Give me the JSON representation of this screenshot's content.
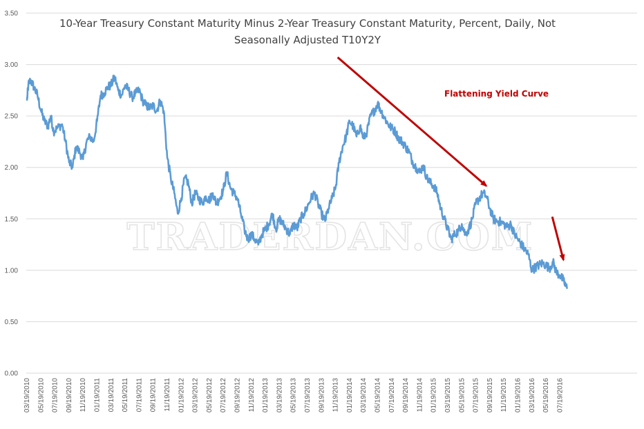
{
  "chart_data": {
    "type": "line",
    "title": "10-Year Treasury Constant Maturity Minus 2-Year Treasury Constant Maturity, Percent, Daily, Not",
    "subtitle": "Seasonally Adjusted T10Y2Y",
    "watermark": "TRADERDAN.COM",
    "xlabel": "",
    "ylabel": "",
    "ylim": [
      0,
      3.5
    ],
    "yticks": [
      "0.00",
      "0.50",
      "1.00",
      "1.50",
      "2.00",
      "2.50",
      "3.00",
      "3.50"
    ],
    "grid": true,
    "x_tick_labels": [
      "03/19/2010",
      "05/19/2010",
      "07/19/2010",
      "09/19/2010",
      "11/19/2010",
      "01/19/2011",
      "03/19/2011",
      "05/19/2011",
      "07/19/2011",
      "09/19/2011",
      "11/19/2011",
      "01/19/2012",
      "03/19/2012",
      "05/19/2012",
      "07/19/2012",
      "09/19/2012",
      "11/19/2012",
      "01/19/2013",
      "03/19/2013",
      "05/19/2013",
      "07/19/2013",
      "09/19/2013",
      "11/19/2013",
      "01/19/2014",
      "03/19/2014",
      "05/19/2014",
      "07/19/2014",
      "09/19/2014",
      "11/19/2014",
      "01/19/2015",
      "03/19/2015",
      "05/19/2015",
      "07/19/2015",
      "09/19/2015",
      "11/19/2015",
      "01/19/2016",
      "03/19/2016",
      "05/19/2016",
      "07/19/2016"
    ],
    "series": [
      {
        "name": "T10Y2Y",
        "color": "#5b9bd5",
        "x_month_index": [
          0,
          0.2,
          0.5,
          1,
          1.5,
          2,
          2.5,
          3,
          3.4,
          3.8,
          4.3,
          5,
          5.5,
          6,
          6.5,
          7,
          7.5,
          8,
          8.5,
          9,
          9.5,
          10,
          10.5,
          11,
          11.5,
          12,
          12.5,
          13,
          13.5,
          14,
          14.5,
          15,
          15.5,
          16,
          16.5,
          17,
          17.5,
          18,
          18.5,
          19,
          19.5,
          20,
          20.5,
          21,
          21.5,
          22,
          22.5,
          23,
          23.5,
          24,
          24.5,
          25,
          25.5,
          26,
          26.5,
          27,
          27.5,
          28,
          28.5,
          29,
          29.5,
          30,
          30.5,
          31,
          31.5,
          32,
          32.5,
          33,
          33.5,
          34,
          34.5,
          35,
          35.5,
          36,
          36.5,
          37,
          37.5,
          38,
          38.5,
          39,
          39.5,
          40,
          40.5,
          41,
          41.5,
          42,
          42.5,
          43,
          43.5,
          44,
          44.5,
          45,
          45.5,
          46,
          46.5,
          47,
          47.5,
          48,
          48.5,
          49,
          49.5,
          50,
          50.5,
          51,
          51.5,
          52,
          52.5,
          53,
          53.5,
          54,
          54.5,
          55,
          55.5,
          56,
          56.5,
          57,
          57.5,
          58,
          58.5,
          59,
          59.5,
          60,
          60.5,
          61,
          61.5,
          62,
          62.5,
          63,
          63.5,
          64,
          64.5,
          65,
          65.5,
          66,
          66.5,
          67,
          67.5,
          68,
          68.5,
          69,
          69.5,
          70,
          70.5,
          71,
          71.5,
          72,
          72.5,
          73,
          73.5,
          74,
          74.5,
          75,
          75.5,
          76,
          76.5,
          77,
          77.3
        ],
        "values": [
          2.65,
          2.8,
          2.85,
          2.78,
          2.7,
          2.55,
          2.45,
          2.4,
          2.5,
          2.35,
          2.38,
          2.42,
          2.25,
          2.05,
          2.0,
          2.2,
          2.15,
          2.08,
          2.25,
          2.3,
          2.25,
          2.45,
          2.7,
          2.72,
          2.78,
          2.8,
          2.88,
          2.75,
          2.7,
          2.8,
          2.75,
          2.68,
          2.72,
          2.75,
          2.65,
          2.6,
          2.58,
          2.6,
          2.55,
          2.65,
          2.55,
          2.1,
          1.9,
          1.75,
          1.55,
          1.7,
          1.9,
          1.85,
          1.65,
          1.75,
          1.7,
          1.65,
          1.72,
          1.68,
          1.75,
          1.65,
          1.7,
          1.78,
          1.95,
          1.8,
          1.75,
          1.7,
          1.55,
          1.4,
          1.3,
          1.35,
          1.3,
          1.25,
          1.35,
          1.4,
          1.45,
          1.55,
          1.4,
          1.5,
          1.45,
          1.4,
          1.35,
          1.45,
          1.4,
          1.5,
          1.55,
          1.62,
          1.7,
          1.75,
          1.65,
          1.55,
          1.48,
          1.6,
          1.7,
          1.8,
          2.05,
          2.2,
          2.3,
          2.45,
          2.4,
          2.3,
          2.4,
          2.28,
          2.35,
          2.5,
          2.55,
          2.62,
          2.55,
          2.48,
          2.42,
          2.38,
          2.35,
          2.28,
          2.25,
          2.2,
          2.15,
          2.05,
          2.0,
          1.95,
          2.02,
          1.9,
          1.85,
          1.82,
          1.75,
          1.6,
          1.5,
          1.4,
          1.3,
          1.35,
          1.38,
          1.45,
          1.35,
          1.4,
          1.5,
          1.65,
          1.7,
          1.75,
          1.72,
          1.6,
          1.5,
          1.48,
          1.47,
          1.45,
          1.42,
          1.45,
          1.35,
          1.3,
          1.25,
          1.2,
          1.15,
          1.0,
          1.03,
          1.05,
          1.07,
          1.05,
          1.02,
          1.08,
          0.98,
          0.95,
          0.9,
          0.82
        ]
      }
    ],
    "annotations": [
      {
        "text": "Flattening Yield Curve",
        "color": "#c00000"
      }
    ],
    "arrows": [
      {
        "name": "main-trend",
        "color": "#c00000",
        "from": {
          "x_month_index": 44.3,
          "y": 3.07
        },
        "to": {
          "x_month_index": 65.5,
          "y": 1.82
        }
      },
      {
        "name": "recent-trend",
        "color": "#c00000",
        "from": {
          "x_month_index": 74.9,
          "y": 1.52
        },
        "to": {
          "x_month_index": 76.5,
          "y": 1.1
        }
      }
    ]
  }
}
